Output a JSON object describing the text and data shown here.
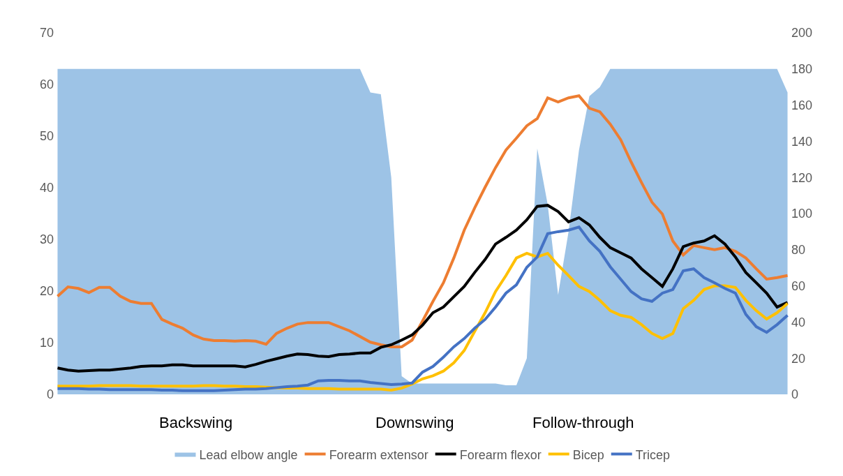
{
  "chart_data": {
    "type": "line",
    "categories": [
      null,
      null,
      null,
      null,
      null,
      null,
      null,
      null,
      null,
      null,
      null,
      null,
      null,
      null,
      null,
      null,
      null,
      null,
      null,
      null,
      null,
      null,
      null,
      null,
      null,
      null,
      null,
      null,
      null,
      null,
      null,
      null,
      null,
      null,
      null,
      null,
      null,
      null,
      null,
      null,
      null,
      null,
      null,
      null,
      null,
      null,
      null,
      null,
      null,
      null,
      null,
      null,
      null,
      null,
      null,
      null,
      null,
      null,
      null,
      null,
      null,
      null,
      null,
      null,
      null,
      null,
      null,
      null,
      null,
      null,
      null
    ],
    "series": [
      {
        "name": "Lead elbow angle",
        "type": "area",
        "axis": "y2",
        "color": "#9dc3e6",
        "values": [
          180,
          180,
          180,
          180,
          180,
          180,
          180,
          180,
          180,
          180,
          180,
          180,
          180,
          180,
          180,
          180,
          180,
          180,
          180,
          180,
          180,
          180,
          180,
          180,
          180,
          180,
          180,
          180,
          180,
          180,
          167,
          166,
          120,
          10,
          6,
          6,
          6,
          6,
          6,
          6,
          6,
          6,
          6,
          5,
          5,
          20,
          136,
          105,
          55,
          90,
          135,
          165,
          170,
          180,
          180,
          180,
          180,
          180,
          180,
          180,
          180,
          180,
          180,
          180,
          180,
          180,
          180,
          180,
          180,
          180,
          167
        ]
      },
      {
        "name": "Forearm extensor",
        "color": "#ed7d31",
        "values": [
          19,
          20.8,
          20.5,
          19.7,
          20.7,
          20.7,
          19,
          18,
          17.6,
          17.6,
          14.5,
          13.6,
          12.8,
          11.5,
          10.7,
          10.4,
          10.4,
          10.3,
          10.4,
          10.3,
          9.7,
          11.8,
          12.8,
          13.6,
          13.9,
          13.9,
          13.9,
          13.1,
          12.3,
          11.2,
          10.1,
          9.6,
          9.2,
          9.2,
          10.5,
          14.2,
          18,
          21.6,
          26.4,
          31.8,
          36.1,
          40.1,
          43.9,
          47.3,
          49.6,
          52,
          53.4,
          57.4,
          56.6,
          57.4,
          57.8,
          55.4,
          54.7,
          52.3,
          49.3,
          45,
          41,
          37.2,
          34.9,
          29.7,
          27,
          28.8,
          28.4,
          28,
          28.4,
          27.7,
          26.4,
          24.3,
          22.3,
          22.6,
          23
        ]
      },
      {
        "name": "Forearm flexor",
        "color": "#000000",
        "values": [
          5.1,
          4.7,
          4.5,
          4.6,
          4.7,
          4.7,
          4.9,
          5.1,
          5.4,
          5.5,
          5.5,
          5.7,
          5.7,
          5.5,
          5.5,
          5.5,
          5.5,
          5.5,
          5.3,
          5.8,
          6.4,
          6.9,
          7.4,
          7.8,
          7.7,
          7.4,
          7.3,
          7.7,
          7.8,
          8,
          8,
          9.1,
          9.6,
          10.5,
          11.5,
          13.4,
          15.8,
          16.9,
          18.9,
          20.9,
          23.6,
          26.1,
          29.1,
          30.4,
          31.8,
          33.8,
          36.4,
          36.6,
          35.4,
          33.4,
          34.2,
          32.8,
          30.4,
          28.4,
          27.4,
          26.4,
          24.3,
          22.6,
          20.9,
          24.3,
          28.6,
          29.3,
          29.7,
          30.7,
          29.1,
          26.6,
          23.6,
          21.6,
          19.6,
          16.9,
          17.8
        ]
      },
      {
        "name": "Bicep",
        "color": "#ffc000",
        "values": [
          1.6,
          1.6,
          1.6,
          1.6,
          1.7,
          1.7,
          1.7,
          1.7,
          1.6,
          1.6,
          1.6,
          1.6,
          1.6,
          1.6,
          1.7,
          1.7,
          1.6,
          1.6,
          1.5,
          1.5,
          1.4,
          1.3,
          1.2,
          1.2,
          1.1,
          1.1,
          1.1,
          1,
          1,
          1,
          1,
          1,
          0.8,
          1.2,
          2,
          3,
          3.6,
          4.5,
          6.1,
          8.5,
          12.2,
          15.8,
          19.9,
          23,
          26.4,
          27.3,
          26.6,
          27.3,
          25,
          23,
          20.9,
          19.9,
          18.2,
          16.2,
          15.3,
          14.9,
          13.5,
          11.8,
          10.8,
          11.8,
          16.6,
          18.2,
          20.3,
          21,
          21,
          20.7,
          18.2,
          16.2,
          14.6,
          15.8,
          17.6
        ]
      },
      {
        "name": "Tricep",
        "color": "#4472c4",
        "values": [
          1.1,
          1.1,
          1.1,
          1,
          1,
          0.9,
          0.9,
          0.9,
          0.9,
          0.9,
          0.8,
          0.8,
          0.7,
          0.7,
          0.7,
          0.7,
          0.8,
          0.9,
          1,
          1,
          1.1,
          1.3,
          1.5,
          1.6,
          1.8,
          2.6,
          2.7,
          2.7,
          2.6,
          2.6,
          2.3,
          2.1,
          1.9,
          2,
          2.2,
          4.3,
          5.4,
          7.2,
          9.2,
          10.8,
          12.8,
          14.5,
          16.9,
          19.6,
          21.2,
          24.6,
          26.6,
          31.1,
          31.5,
          31.8,
          32.4,
          29.7,
          27.7,
          24.7,
          22.3,
          19.9,
          18.5,
          18,
          19.6,
          20.3,
          23.9,
          24.3,
          22.6,
          21.6,
          20.5,
          19.6,
          15.5,
          13.1,
          12,
          13.5,
          15.3
        ]
      }
    ],
    "ylim": [
      0,
      70
    ],
    "yticks": [
      0,
      10,
      20,
      30,
      40,
      50,
      60,
      70
    ],
    "y2lim": [
      0,
      200
    ],
    "y2ticks": [
      0,
      20,
      40,
      60,
      80,
      100,
      120,
      140,
      160,
      180,
      200
    ],
    "annotations": [
      "Backswing",
      "Downswing",
      "Follow-through"
    ],
    "legend": "bottom"
  }
}
